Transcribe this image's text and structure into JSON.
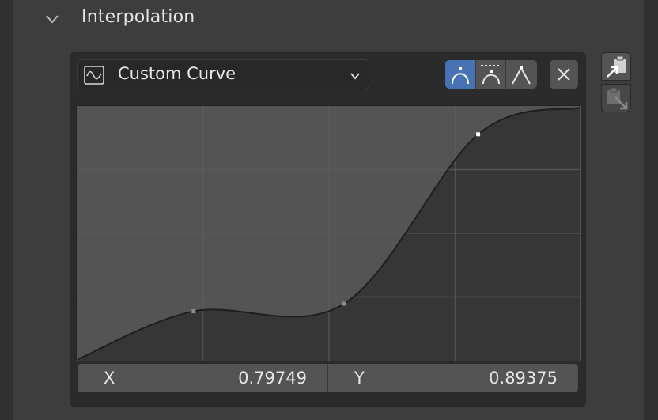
{
  "panel": {
    "title": "Interpolation"
  },
  "curve_widget": {
    "preset": {
      "label": "Custom Curve",
      "icon": "curve-icon"
    },
    "handle_types": [
      {
        "name": "auto-handle",
        "active": true
      },
      {
        "name": "vector-handle-auto-clamped",
        "active": false
      },
      {
        "name": "vector-handle",
        "active": false
      }
    ],
    "points": [
      {
        "x": 0.0,
        "y": 0.0
      },
      {
        "x": 0.23,
        "y": 0.19
      },
      {
        "x": 0.53,
        "y": 0.22
      },
      {
        "x": 0.79749,
        "y": 0.89375
      },
      {
        "x": 1.0,
        "y": 1.0
      }
    ],
    "selected_point": {
      "x_label": "X",
      "x_value": "0.79749",
      "y_label": "Y",
      "y_value": "0.89375"
    }
  },
  "colors": {
    "active_button": "#4772b3",
    "button": "#545454",
    "panel": "#3d3d3d",
    "background": "#303030"
  }
}
